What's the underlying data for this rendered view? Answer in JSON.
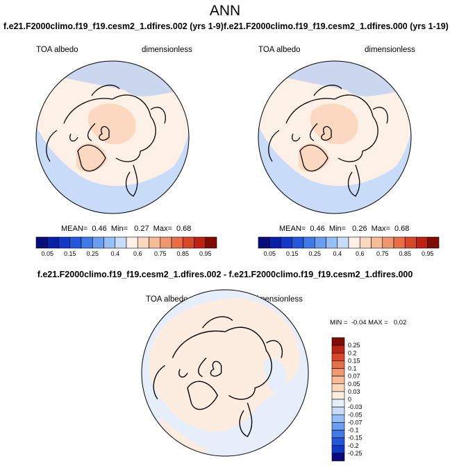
{
  "title": "ANN",
  "panels": [
    {
      "title": "f.e21.F2000climo.f19_f19.cesm2_1.dfires.002 (yrs 1-9)",
      "left": "TOA albedo",
      "right": "dimensionless",
      "stats": "MEAN=  0.46  Min=   0.27  Max=  0.68"
    },
    {
      "title": "f.e21.F2000climo.f19_f19.cesm2_1.dfires.000 (yrs 1-19)",
      "left": "TOA albedo",
      "right": "dimensionless",
      "stats": "MEAN=  0.46  Min=   0.26  Max=  0.68"
    },
    {
      "title": "f.e21.F2000climo.f19_f19.cesm2_1.dfires.002 - f.e21.F2000climo.f19_f19.cesm2_1.dfires.000",
      "left": "TOA albedo",
      "right": "dimensionless",
      "stats": "MIN =  -0.04 MAX =   0.02"
    }
  ],
  "colorbar_top": {
    "labels": [
      "0.05",
      "0.15",
      "0.25",
      "0.4",
      "0.6",
      "0.75",
      "0.85",
      "0.95"
    ],
    "colors": [
      "#0b0b7a",
      "#0a1fa8",
      "#1238c8",
      "#2458dc",
      "#3f7ae8",
      "#6a9ef0",
      "#98bef6",
      "#c8dbf8",
      "#fdf0e6",
      "#fbd8bf",
      "#f7bb98",
      "#f19770",
      "#e86e48",
      "#d9472a",
      "#bb2412",
      "#7e0b04"
    ]
  },
  "colorbar_diff": {
    "labels": [
      "0.25",
      "0.2",
      "0.15",
      "0.1",
      "0.07",
      "0.05",
      "0.03",
      "0",
      "-0.03",
      "-0.05",
      "-0.07",
      "-0.1",
      "-0.15",
      "-0.2",
      "-0.25"
    ],
    "colors": [
      "#7e0b04",
      "#bb2412",
      "#d9472a",
      "#e86e48",
      "#f19770",
      "#f7bb98",
      "#fbd8bf",
      "#fdece0",
      "#e6eefa",
      "#c8dbf8",
      "#98bef6",
      "#6a9ef0",
      "#3f7ae8",
      "#2458dc",
      "#1238c8",
      "#0b0b7a"
    ]
  }
}
